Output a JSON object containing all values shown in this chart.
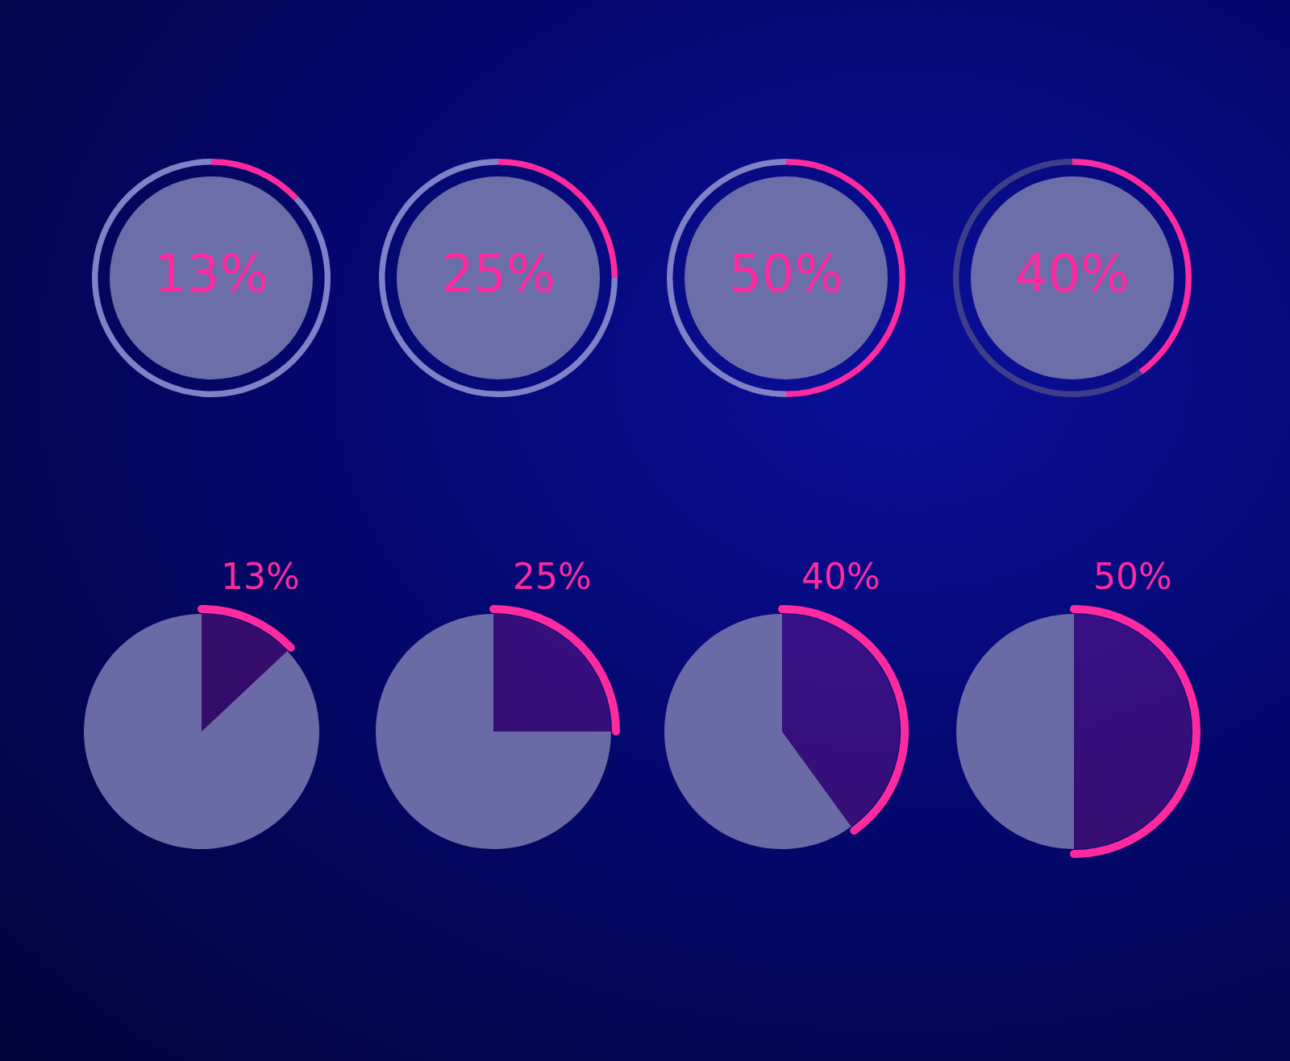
{
  "chart_data": [
    {
      "type": "donut",
      "categories": [
        null,
        null
      ],
      "values": [
        13,
        87
      ],
      "colors": [
        "#ff2aa0",
        "#7f82c6"
      ],
      "value_labels": [
        "13%",
        null
      ]
    },
    {
      "type": "donut",
      "categories": [
        null,
        null
      ],
      "values": [
        25,
        75
      ],
      "colors": [
        "#ff2aa0",
        "#7f82c6"
      ],
      "value_labels": [
        "25%",
        null
      ]
    },
    {
      "type": "donut",
      "categories": [
        null,
        null
      ],
      "values": [
        50,
        50
      ],
      "colors": [
        "#ff2aa0",
        "#7f82c6"
      ],
      "value_labels": [
        "50%",
        null
      ]
    },
    {
      "type": "donut",
      "categories": [
        null,
        null
      ],
      "values": [
        40,
        60
      ],
      "colors": [
        "#ff2aa0",
        "#3d3f8a"
      ],
      "value_labels": [
        "40%",
        null
      ]
    },
    {
      "type": "pie",
      "categories": [
        null,
        null
      ],
      "values": [
        13,
        87
      ],
      "colors": [
        "#ff2aa0",
        "#6a6aa6"
      ],
      "value_labels": [
        "13%",
        null
      ]
    },
    {
      "type": "pie",
      "categories": [
        null,
        null
      ],
      "values": [
        25,
        75
      ],
      "colors": [
        "#ff2aa0",
        "#6a6aa6"
      ],
      "value_labels": [
        "25%",
        null
      ]
    },
    {
      "type": "pie",
      "categories": [
        null,
        null
      ],
      "values": [
        40,
        60
      ],
      "colors": [
        "#ff2aa0",
        "#6a6aa6"
      ],
      "value_labels": [
        "40%",
        null
      ]
    },
    {
      "type": "pie",
      "categories": [
        null,
        null
      ],
      "values": [
        50,
        50
      ],
      "colors": [
        "#ff2aa0",
        "#6a6aa6"
      ],
      "value_labels": [
        "50%",
        null
      ]
    }
  ]
}
